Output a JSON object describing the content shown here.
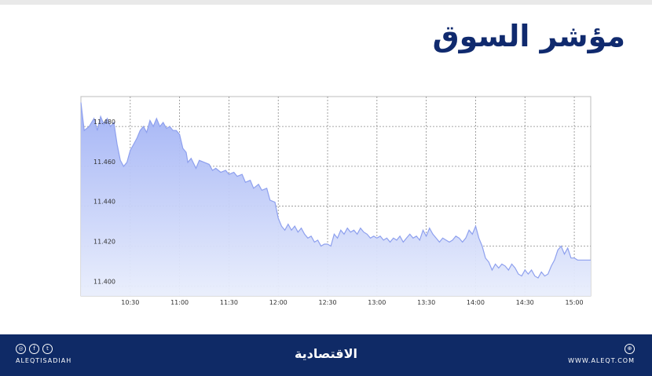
{
  "title": "مؤشر السوق",
  "footer": {
    "handle": "ALEQTISADIAH",
    "brand": "الاقتصادية",
    "website": "WWW.ALEQT.COM",
    "social_icons": [
      "instagram-icon",
      "facebook-icon",
      "twitter-icon"
    ],
    "web_icon": "globe-icon"
  },
  "colors": {
    "title": "#102a6e",
    "footer_bg": "#0f2a66",
    "area_top": "#9fb0f5",
    "area_bottom": "#e9eefc",
    "line": "#8ea0ee",
    "grid": "#8a8a8a"
  },
  "chart_data": {
    "type": "area",
    "title": "مؤشر السوق",
    "xlabel": "",
    "ylabel": "",
    "grid": true,
    "xlim": [
      "10:00",
      "15:10"
    ],
    "ylim": [
      11.395,
      11.495
    ],
    "x_ticks": [
      "10:30",
      "11:00",
      "11:30",
      "12:00",
      "12:30",
      "13:00",
      "13:30",
      "14:00",
      "14:30",
      "15:00"
    ],
    "y_ticks": [
      "11.400",
      "11.420",
      "11.440",
      "11.460",
      "11.480"
    ],
    "x": [
      "10:00",
      "10:02",
      "10:05",
      "10:08",
      "10:10",
      "10:12",
      "10:14",
      "10:16",
      "10:18",
      "10:20",
      "10:22",
      "10:24",
      "10:26",
      "10:28",
      "10:30",
      "10:32",
      "10:34",
      "10:36",
      "10:38",
      "10:40",
      "10:42",
      "10:44",
      "10:46",
      "10:48",
      "10:50",
      "10:52",
      "10:54",
      "10:56",
      "10:58",
      "11:00",
      "11:02",
      "11:04",
      "11:05",
      "11:07",
      "11:10",
      "11:12",
      "11:15",
      "11:18",
      "11:20",
      "11:22",
      "11:25",
      "11:28",
      "11:30",
      "11:33",
      "11:35",
      "11:38",
      "11:40",
      "11:43",
      "11:45",
      "11:48",
      "11:50",
      "11:53",
      "11:55",
      "11:58",
      "12:00",
      "12:02",
      "12:04",
      "12:06",
      "12:08",
      "12:10",
      "12:12",
      "12:14",
      "12:16",
      "12:18",
      "12:20",
      "12:22",
      "12:24",
      "12:26",
      "12:28",
      "12:30",
      "12:32",
      "12:34",
      "12:36",
      "12:38",
      "12:40",
      "12:42",
      "12:44",
      "12:46",
      "12:48",
      "12:50",
      "12:52",
      "12:54",
      "12:56",
      "12:58",
      "13:00",
      "13:02",
      "13:04",
      "13:06",
      "13:08",
      "13:10",
      "13:12",
      "13:14",
      "13:16",
      "13:18",
      "13:20",
      "13:22",
      "13:24",
      "13:26",
      "13:28",
      "13:30",
      "13:32",
      "13:34",
      "13:36",
      "13:38",
      "13:40",
      "13:42",
      "13:44",
      "13:46",
      "13:48",
      "13:50",
      "13:52",
      "13:54",
      "13:56",
      "13:58",
      "14:00",
      "14:02",
      "14:04",
      "14:06",
      "14:08",
      "14:10",
      "14:12",
      "14:14",
      "14:16",
      "14:18",
      "14:20",
      "14:22",
      "14:24",
      "14:26",
      "14:28",
      "14:30",
      "14:32",
      "14:34",
      "14:36",
      "14:38",
      "14:40",
      "14:42",
      "14:44",
      "14:46",
      "14:48",
      "14:50",
      "14:52",
      "14:54",
      "14:56",
      "14:58",
      "15:00",
      "15:02",
      "15:04",
      "15:06",
      "15:08",
      "15:10"
    ],
    "y": [
      11.492,
      11.478,
      11.48,
      11.484,
      11.478,
      11.485,
      11.481,
      11.484,
      11.48,
      11.482,
      11.471,
      11.463,
      11.46,
      11.462,
      11.468,
      11.471,
      11.474,
      11.478,
      11.48,
      11.477,
      11.483,
      11.48,
      11.484,
      11.48,
      11.482,
      11.479,
      11.48,
      11.478,
      11.478,
      11.476,
      11.469,
      11.467,
      11.462,
      11.464,
      11.459,
      11.463,
      11.462,
      11.461,
      11.458,
      11.459,
      11.457,
      11.458,
      11.456,
      11.457,
      11.455,
      11.456,
      11.452,
      11.453,
      11.449,
      11.451,
      11.448,
      11.449,
      11.443,
      11.442,
      11.434,
      11.43,
      11.428,
      11.431,
      11.428,
      11.43,
      11.427,
      11.429,
      11.426,
      11.424,
      11.425,
      11.422,
      11.423,
      11.42,
      11.421,
      11.421,
      11.42,
      11.426,
      11.424,
      11.428,
      11.426,
      11.429,
      11.427,
      11.428,
      11.426,
      11.429,
      11.427,
      11.426,
      11.424,
      11.425,
      11.424,
      11.425,
      11.423,
      11.424,
      11.422,
      11.424,
      11.423,
      11.425,
      11.422,
      11.424,
      11.426,
      11.424,
      11.425,
      11.423,
      11.428,
      11.425,
      11.429,
      11.426,
      11.424,
      11.422,
      11.424,
      11.423,
      11.422,
      11.423,
      11.425,
      11.424,
      11.422,
      11.424,
      11.428,
      11.426,
      11.43,
      11.424,
      11.42,
      11.414,
      11.412,
      11.408,
      11.411,
      11.409,
      11.411,
      11.41,
      11.408,
      11.411,
      11.409,
      11.406,
      11.405,
      11.408,
      11.406,
      11.408,
      11.405,
      11.404,
      11.407,
      11.405,
      11.406,
      11.41,
      11.413,
      11.418,
      11.42,
      11.416,
      11.419,
      11.414,
      11.414,
      11.413,
      11.413,
      11.413,
      11.413,
      11.413
    ]
  }
}
